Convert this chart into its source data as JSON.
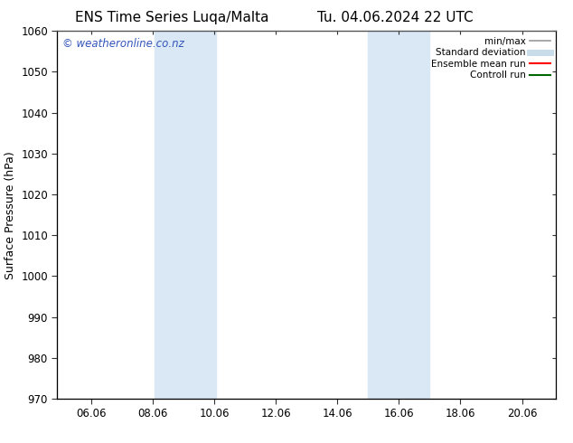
{
  "title_left": "ENS Time Series Luqa/Malta",
  "title_right": "Tu. 04.06.2024 22 UTC",
  "ylabel": "Surface Pressure (hPa)",
  "ylim": [
    970,
    1060
  ],
  "yticks": [
    970,
    980,
    990,
    1000,
    1010,
    1020,
    1030,
    1040,
    1050,
    1060
  ],
  "xlim_start": 4.9,
  "xlim_end": 21.1,
  "xtick_labels": [
    "06.06",
    "08.06",
    "10.06",
    "12.06",
    "14.06",
    "16.06",
    "18.06",
    "20.06"
  ],
  "xtick_positions": [
    6.0,
    8.0,
    10.0,
    12.0,
    14.0,
    16.0,
    18.0,
    20.0
  ],
  "shaded_bands": [
    {
      "xmin": 8.06,
      "xmax": 10.06,
      "color": "#dae8f5"
    },
    {
      "xmin": 15.0,
      "xmax": 17.0,
      "color": "#dae8f5"
    }
  ],
  "watermark_text": "© weatheronline.co.nz",
  "watermark_color": "#3355bb",
  "legend_entries": [
    {
      "label": "min/max",
      "color": "#999999",
      "lw": 1.2
    },
    {
      "label": "Standard deviation",
      "color": "#c8dcea",
      "lw": 5
    },
    {
      "label": "Ensemble mean run",
      "color": "#ff0000",
      "lw": 1.5
    },
    {
      "label": "Controll run",
      "color": "#006600",
      "lw": 1.5
    }
  ],
  "bg_color": "#ffffff",
  "tick_color": "#333333",
  "spine_color": "#555555",
  "title_fontsize": 11,
  "axis_label_fontsize": 9,
  "tick_fontsize": 8.5,
  "legend_fontsize": 7.5,
  "watermark_fontsize": 8.5
}
